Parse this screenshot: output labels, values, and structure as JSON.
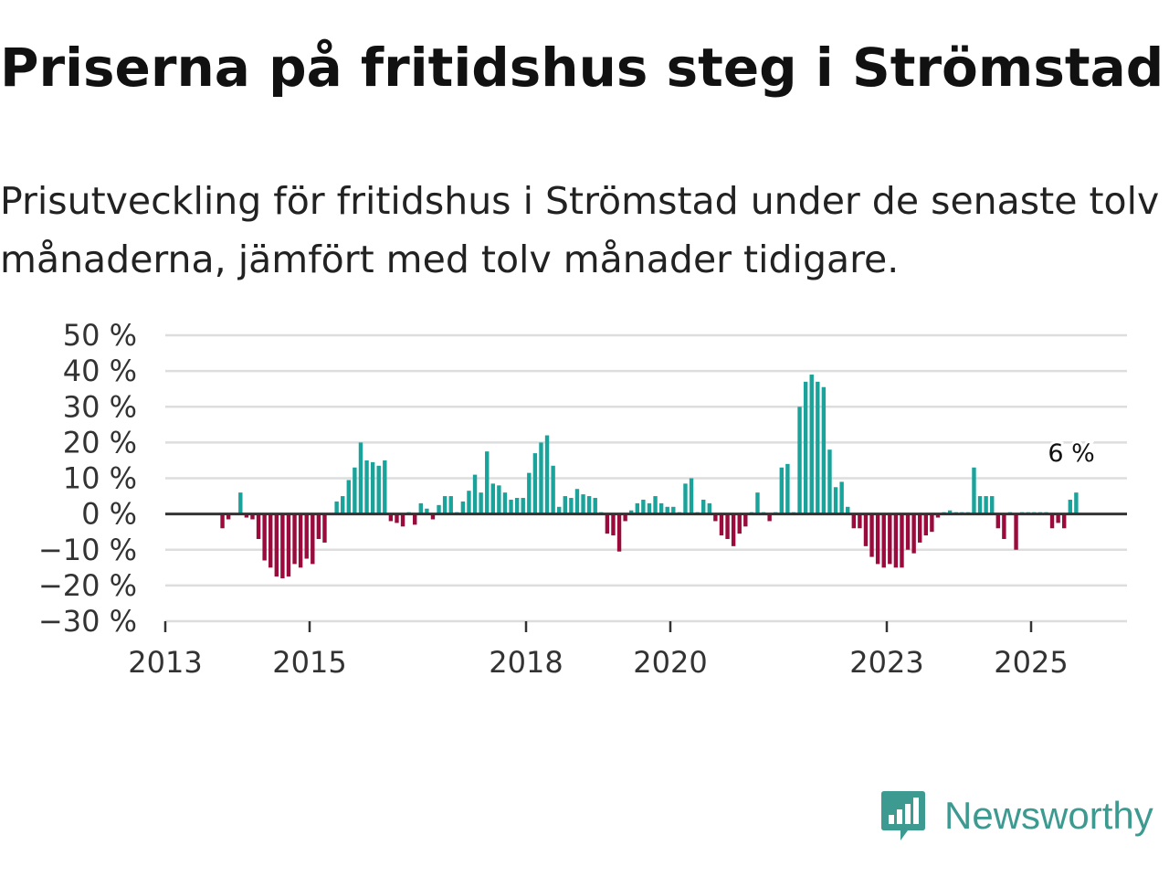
{
  "title": "Priserna på fritidshus steg i Strömstad",
  "subtitle": "Prisutveckling för fritidshus i Strömstad under de senaste tolv månaderna, jämfört med tolv månader tidigare.",
  "brand": {
    "name": "Newsworthy",
    "color": "#3d9a91",
    "icon": "newsworthy-logo-icon"
  },
  "colors": {
    "positive": "#1aa39b",
    "negative": "#9b0a3c",
    "grid": "#dddddd",
    "zero": "#333333"
  },
  "chart_data": {
    "type": "bar",
    "title": "Prisutveckling för fritidshus i Strömstad",
    "xlabel": "",
    "ylabel": "",
    "unit": "%",
    "ylim": [
      -30,
      50
    ],
    "yticks": [
      50,
      40,
      30,
      20,
      10,
      0,
      -10,
      -20,
      -30
    ],
    "ytick_labels": [
      "50 %",
      "40 %",
      "30 %",
      "20 %",
      "10 %",
      "0 %",
      "−10 %",
      "−20 %",
      "−30 %"
    ],
    "xticks": [
      2013,
      2015,
      2018,
      2020,
      2023,
      2025
    ],
    "xtick_labels": [
      "2013",
      "2015",
      "2018",
      "2020",
      "2023",
      "2025"
    ],
    "x_start": "2013-01",
    "annotation": {
      "text": "6 %",
      "value": 6
    },
    "values": [
      null,
      null,
      null,
      null,
      null,
      null,
      null,
      null,
      null,
      -4,
      -1.5,
      0,
      6,
      -1,
      -1.5,
      -7,
      -13,
      -15,
      -17.5,
      -18,
      -17.5,
      -14,
      -15,
      -12.5,
      -14,
      -7,
      -8,
      0,
      3.5,
      5,
      9.5,
      13,
      20,
      15,
      14.5,
      13.5,
      15,
      -2,
      -2.5,
      -3.5,
      0.5,
      -3,
      3,
      1.5,
      -1.5,
      2.5,
      5,
      5,
      0.5,
      3.5,
      6.5,
      11,
      6,
      17.5,
      8.5,
      8,
      6,
      4,
      4.5,
      4.5,
      11.5,
      17,
      20,
      22,
      13.5,
      2,
      5,
      4.5,
      7,
      5.5,
      5,
      4.5,
      0.5,
      -5.5,
      -6,
      -10.5,
      -2,
      1,
      3,
      4,
      3,
      5,
      3,
      2,
      2,
      0.5,
      8.5,
      10,
      0.5,
      4,
      3,
      -2,
      -6,
      -7,
      -9,
      -5.5,
      -3.5,
      0.5,
      6,
      0.5,
      -2,
      0.5,
      13,
      14,
      0.5,
      30,
      37,
      39,
      37,
      35.5,
      18,
      7.5,
      9,
      2,
      -4,
      -4,
      -9,
      -12,
      -14,
      -15,
      -14,
      -15,
      -15,
      -10,
      -11,
      -8,
      -6,
      -5,
      -1,
      0.5,
      1,
      0.5,
      0.5,
      0.5,
      13,
      5,
      5,
      5,
      -4,
      -7,
      0.5,
      -10,
      0.5,
      0.5,
      0.5,
      0.5,
      0.5,
      -4,
      -2.5,
      -4,
      4,
      6
    ]
  }
}
